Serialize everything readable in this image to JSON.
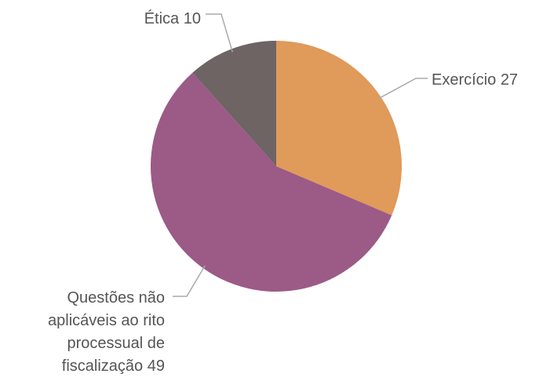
{
  "chart_data": {
    "type": "pie",
    "categories": [
      "Exercício",
      "Questões não aplicáveis ao rito processual de fiscalização",
      "Ética"
    ],
    "values": [
      27,
      49,
      10
    ],
    "colors": [
      "#e09a5a",
      "#9c5a87",
      "#6e6464"
    ]
  }
}
